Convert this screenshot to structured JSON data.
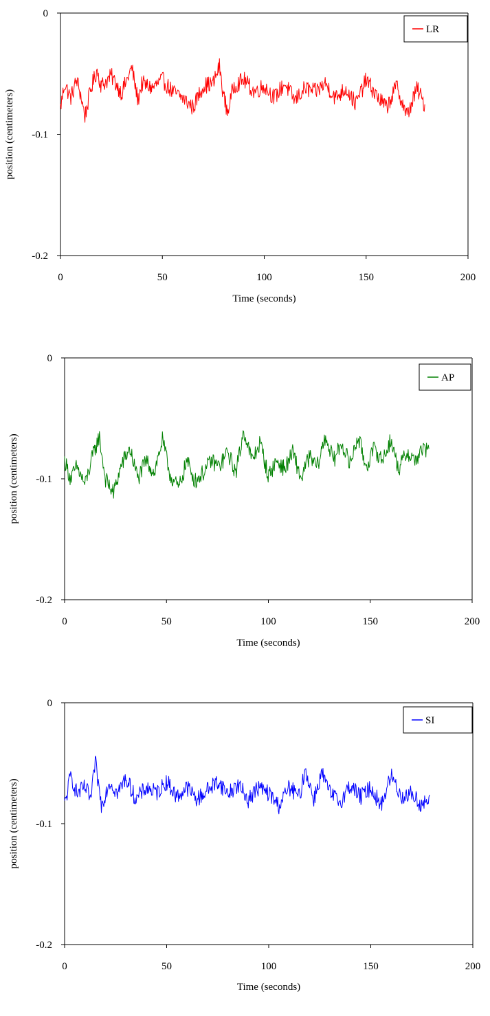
{
  "chart_data": [
    {
      "type": "line",
      "xlabel": "Time (seconds)",
      "ylabel": "position (centimeters)",
      "xlim": [
        0,
        200
      ],
      "ylim": [
        -0.2,
        0
      ],
      "xticks": [
        "0",
        "50",
        "100",
        "150",
        "200"
      ],
      "yticks": [
        "0",
        "-0.1",
        "-0.2"
      ],
      "legend": "top-right",
      "grid": false,
      "series": [
        {
          "name": "LR",
          "color": "#ff0000",
          "mean": -0.066,
          "amplitude": 0.01,
          "x_end": 179,
          "x": [
            0,
            2,
            5,
            8,
            10,
            12,
            15,
            18,
            20,
            25,
            30,
            35,
            38,
            40,
            45,
            50,
            55,
            60,
            65,
            70,
            75,
            78,
            80,
            82,
            85,
            90,
            95,
            100,
            105,
            110,
            115,
            120,
            125,
            130,
            135,
            140,
            145,
            150,
            155,
            160,
            165,
            170,
            175,
            179
          ],
          "y": [
            -0.078,
            -0.058,
            -0.07,
            -0.055,
            -0.068,
            -0.085,
            -0.062,
            -0.047,
            -0.06,
            -0.052,
            -0.066,
            -0.045,
            -0.072,
            -0.058,
            -0.062,
            -0.055,
            -0.065,
            -0.07,
            -0.078,
            -0.06,
            -0.058,
            -0.044,
            -0.068,
            -0.082,
            -0.06,
            -0.055,
            -0.065,
            -0.06,
            -0.07,
            -0.058,
            -0.072,
            -0.062,
            -0.065,
            -0.058,
            -0.07,
            -0.062,
            -0.075,
            -0.055,
            -0.068,
            -0.078,
            -0.06,
            -0.085,
            -0.062,
            -0.077
          ]
        }
      ]
    },
    {
      "type": "line",
      "xlabel": "Time (seconds)",
      "ylabel": "position (centimeters)",
      "xlim": [
        0,
        200
      ],
      "ylim": [
        -0.2,
        0
      ],
      "xticks": [
        "0",
        "50",
        "100",
        "150",
        "200"
      ],
      "yticks": [
        "0",
        "-0.1",
        "-0.2"
      ],
      "legend": "top-right",
      "grid": false,
      "series": [
        {
          "name": "AP",
          "color": "#008000",
          "x_end": 179,
          "x": [
            0,
            3,
            6,
            10,
            14,
            17,
            20,
            24,
            28,
            32,
            36,
            40,
            44,
            48,
            52,
            56,
            60,
            64,
            68,
            72,
            76,
            80,
            84,
            88,
            92,
            96,
            100,
            104,
            108,
            112,
            116,
            120,
            124,
            128,
            132,
            136,
            140,
            144,
            148,
            152,
            156,
            160,
            164,
            168,
            172,
            176,
            179
          ],
          "y": [
            -0.085,
            -0.1,
            -0.09,
            -0.105,
            -0.08,
            -0.065,
            -0.1,
            -0.112,
            -0.088,
            -0.075,
            -0.1,
            -0.085,
            -0.095,
            -0.068,
            -0.098,
            -0.108,
            -0.085,
            -0.102,
            -0.095,
            -0.085,
            -0.09,
            -0.078,
            -0.095,
            -0.06,
            -0.085,
            -0.07,
            -0.098,
            -0.085,
            -0.092,
            -0.078,
            -0.1,
            -0.082,
            -0.09,
            -0.065,
            -0.085,
            -0.07,
            -0.088,
            -0.065,
            -0.09,
            -0.075,
            -0.085,
            -0.068,
            -0.092,
            -0.078,
            -0.085,
            -0.075,
            -0.078
          ]
        }
      ]
    },
    {
      "type": "line",
      "xlabel": "Time (seconds)",
      "ylabel": "position (centimeters)",
      "xlim": [
        0,
        200
      ],
      "ylim": [
        -0.2,
        0
      ],
      "xticks": [
        "0",
        "50",
        "100",
        "150",
        "200"
      ],
      "yticks": [
        "0",
        "-0.1",
        "-0.2"
      ],
      "legend": "top-right",
      "grid": false,
      "series": [
        {
          "name": "SI",
          "color": "#0000ff",
          "x_end": 179,
          "x": [
            0,
            3,
            6,
            10,
            13,
            15,
            18,
            22,
            26,
            30,
            35,
            40,
            45,
            50,
            55,
            60,
            65,
            70,
            75,
            80,
            85,
            90,
            95,
            100,
            105,
            110,
            115,
            118,
            122,
            126,
            130,
            135,
            140,
            145,
            150,
            155,
            160,
            165,
            170,
            175,
            179
          ],
          "y": [
            -0.085,
            -0.06,
            -0.075,
            -0.07,
            -0.08,
            -0.048,
            -0.085,
            -0.065,
            -0.075,
            -0.062,
            -0.08,
            -0.07,
            -0.075,
            -0.065,
            -0.078,
            -0.07,
            -0.08,
            -0.072,
            -0.065,
            -0.075,
            -0.068,
            -0.08,
            -0.07,
            -0.075,
            -0.085,
            -0.07,
            -0.078,
            -0.055,
            -0.08,
            -0.058,
            -0.075,
            -0.082,
            -0.068,
            -0.078,
            -0.07,
            -0.085,
            -0.06,
            -0.078,
            -0.075,
            -0.085,
            -0.08
          ]
        }
      ]
    }
  ]
}
